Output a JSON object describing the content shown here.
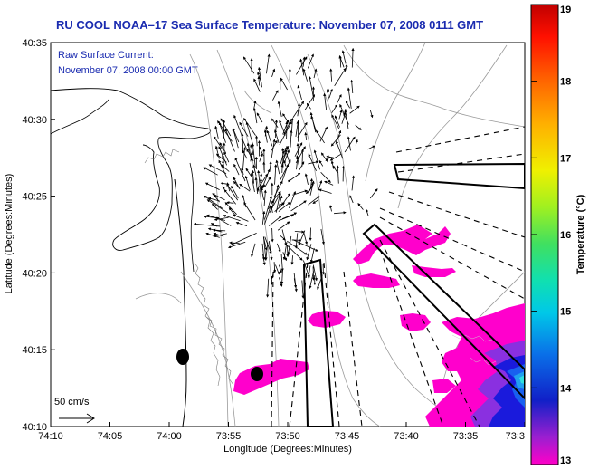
{
  "title": "RU COOL  NOAA–17  Sea Surface Temperature:  November 07, 2008 0111 GMT",
  "subtitle_line1": "Raw Surface Current:",
  "subtitle_line2": "November 07, 2008 00:00 GMT",
  "scale_label": "50 cm/s",
  "chart_data": {
    "type": "heatmap",
    "title": "RU COOL  NOAA–17  Sea Surface Temperature:  November 07, 2008 0111 GMT",
    "xlabel": "Longitude (Degrees:Minutes)",
    "ylabel": "Latitude (Degrees:Minutes)",
    "x_ticks": [
      "74:10",
      "74:05",
      "74:00",
      "73:55",
      "73:50",
      "73:45",
      "73:40",
      "73:35",
      "73:3"
    ],
    "y_ticks": [
      "40:35",
      "40:30",
      "40:25",
      "40:20",
      "40:15",
      "40:10"
    ],
    "xlim_minutes_west": [
      10,
      30
    ],
    "ylim_minutes_north": [
      10,
      35
    ],
    "colorbar": {
      "label": "Temperature (°C)",
      "ticks": [
        "19",
        "18",
        "17",
        "16",
        "15",
        "14",
        "13"
      ],
      "range": [
        13,
        19
      ]
    },
    "markers": [
      {
        "name": "marker-1",
        "lon_min_w": 1.6,
        "lat_min_n": 14.7
      },
      {
        "name": "marker-2",
        "lon_min_w": 7.4,
        "lat_min_n": 13.5
      }
    ],
    "current_vector_scale": "50 cm/s"
  }
}
